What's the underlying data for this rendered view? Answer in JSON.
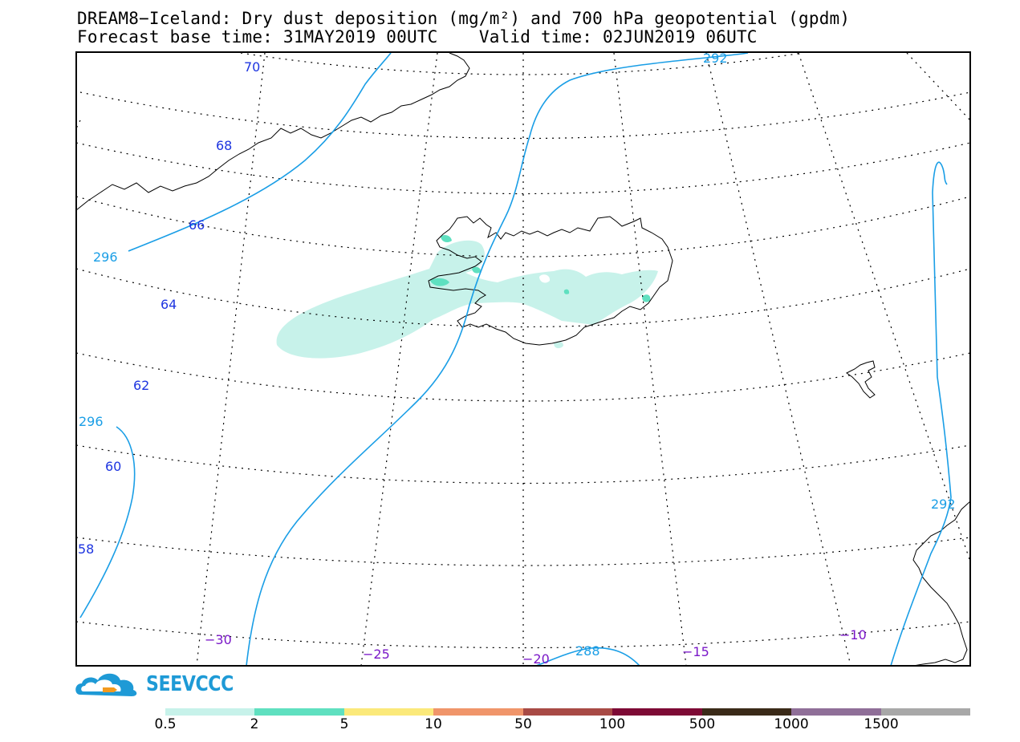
{
  "title_line1": "DREAM8−Iceland: Dry dust deposition (mg/m²) and 700 hPa geopotential (gpdm)",
  "title_line2": "Forecast base time: 31MAY2019 00UTC    Valid time: 02JUN2019 06UTC",
  "latitude_labels": [
    "70",
    "68",
    "66",
    "64",
    "62",
    "60",
    "58"
  ],
  "longitude_labels": [
    "−30",
    "−25",
    "−20",
    "−15",
    "−10"
  ],
  "contour_labels": [
    "292",
    "296",
    "296",
    "292",
    "288"
  ],
  "logo": {
    "text": "SEEVCCC",
    "icon": "cloud-logo-icon"
  },
  "legend": {
    "labels": [
      "0.5",
      "2",
      "5",
      "10",
      "50",
      "100",
      "500",
      "1000",
      "1500"
    ],
    "colors": [
      "#c7f2ea",
      "#5fe0c0",
      "#fbe97a",
      "#f0956a",
      "#a84a45",
      "#7d0a35",
      "#3a2a18",
      "#8f6f98",
      "#a8a8a8"
    ]
  },
  "colors": {
    "contour": "#1a9ee6",
    "lat_label": "#1e35e0",
    "lon_label": "#7a18c8",
    "dust_light": "#c7f2ea",
    "dust_mid": "#5fe0c0"
  }
}
